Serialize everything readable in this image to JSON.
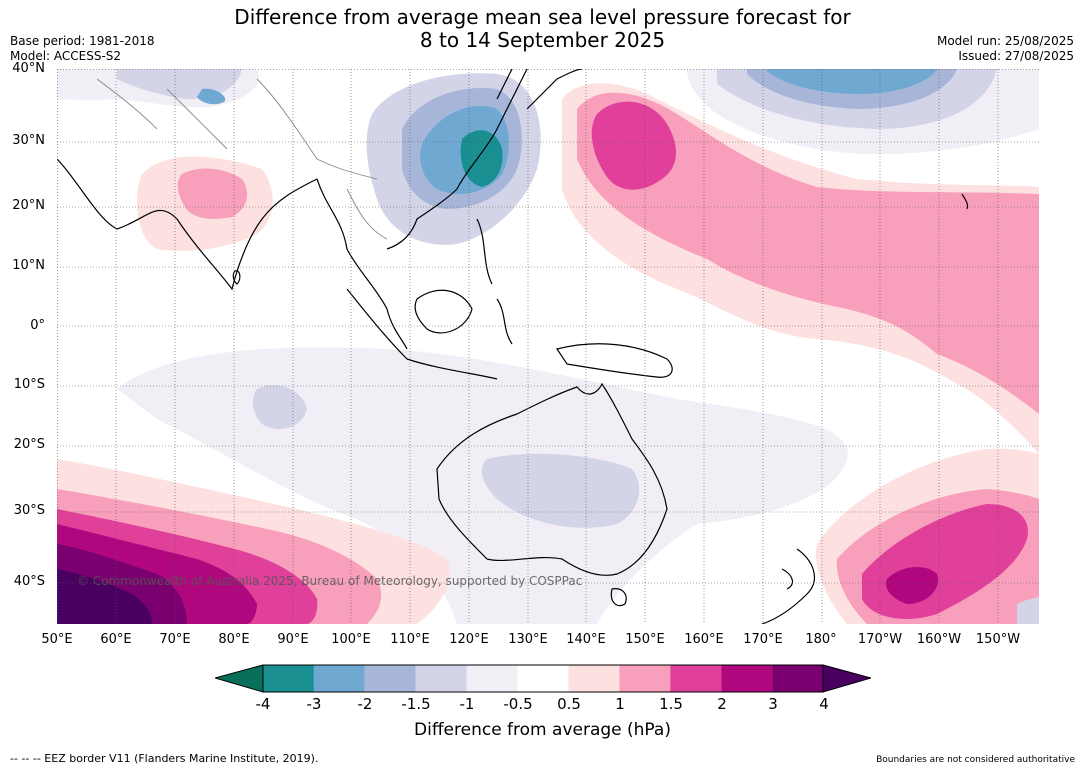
{
  "title": {
    "line1": "Difference from average mean sea level pressure forecast for",
    "line2": "8 to 14 September 2025"
  },
  "meta": {
    "base_period": "Base period: 1981-2018",
    "model": "Model: ACCESS-S2",
    "model_run": "Model run: 25/08/2025",
    "issued": "Issued: 27/08/2025"
  },
  "axes": {
    "lat_labels": [
      "40°N",
      "30°N",
      "20°N",
      "10°N",
      "0°",
      "10°S",
      "20°S",
      "30°S",
      "40°S"
    ],
    "lon_labels": [
      "50°E",
      "60°E",
      "70°E",
      "80°E",
      "90°E",
      "100°E",
      "110°E",
      "120°E",
      "130°E",
      "140°E",
      "150°E",
      "160°E",
      "170°E",
      "180°",
      "170°W",
      "160°W",
      "150°W"
    ]
  },
  "colorbar": {
    "ticks": [
      "-4",
      "-3",
      "-2",
      "-1.5",
      "-1",
      "-0.5",
      "0.5",
      "1",
      "1.5",
      "2",
      "3",
      "4"
    ],
    "colors": [
      "#1a8f92",
      "#6fa9d1",
      "#a7b6d8",
      "#d4d4e8",
      "#f2eef6",
      "#ffffff",
      "#fde0e0",
      "#f8a0bb",
      "#e0409a",
      "#b0077f",
      "#7a0070"
    ],
    "under_color": "#0a6f5a",
    "over_color": "#4a0060",
    "title": "Difference from average (hPa)"
  },
  "copyright": "© Commonwealth of Australia 2025, Bureau of Meteorology, supported by COSPPac",
  "footer": {
    "eez": "--  --  -- EEZ border V11 (Flanders Marine Institute, 2019).",
    "boundaries": "Boundaries are not considered authoritative"
  },
  "colors": {
    "grid": "#555555",
    "coast": "#000000"
  }
}
